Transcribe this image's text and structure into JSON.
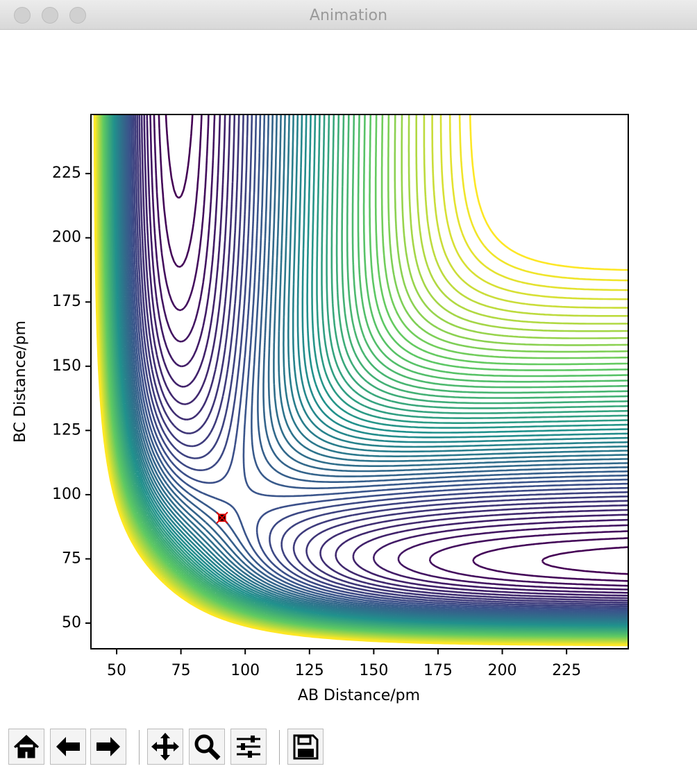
{
  "window_title": "Animation",
  "chart_data": {
    "type": "contour",
    "x_label": "AB Distance/pm",
    "y_label": "BC Distance/pm",
    "xlim": [
      40,
      249
    ],
    "ylim": [
      40,
      248
    ],
    "xticks": [
      50,
      75,
      100,
      125,
      150,
      175,
      200,
      225
    ],
    "yticks": [
      50,
      75,
      100,
      125,
      150,
      175,
      200,
      225
    ],
    "colormap": "viridis",
    "levels": [
      -380,
      -374,
      -368,
      -362,
      -356,
      -350,
      -344,
      -338,
      -332,
      -326,
      -320,
      -314,
      -308,
      -302,
      -296,
      -290,
      -284,
      -278,
      -272,
      -266,
      -260,
      -254,
      -248,
      -242,
      -236,
      -230,
      -224,
      -218,
      -212,
      -206,
      -200,
      -194,
      -188,
      -182,
      -176,
      -170,
      -164,
      -158,
      -152,
      -146,
      -140,
      -134,
      -128,
      -122,
      -116,
      -110,
      -104,
      -98,
      -92,
      -86,
      -80
    ],
    "marker": {
      "x": 91,
      "y": 91,
      "color": "#e00000"
    }
  }
}
